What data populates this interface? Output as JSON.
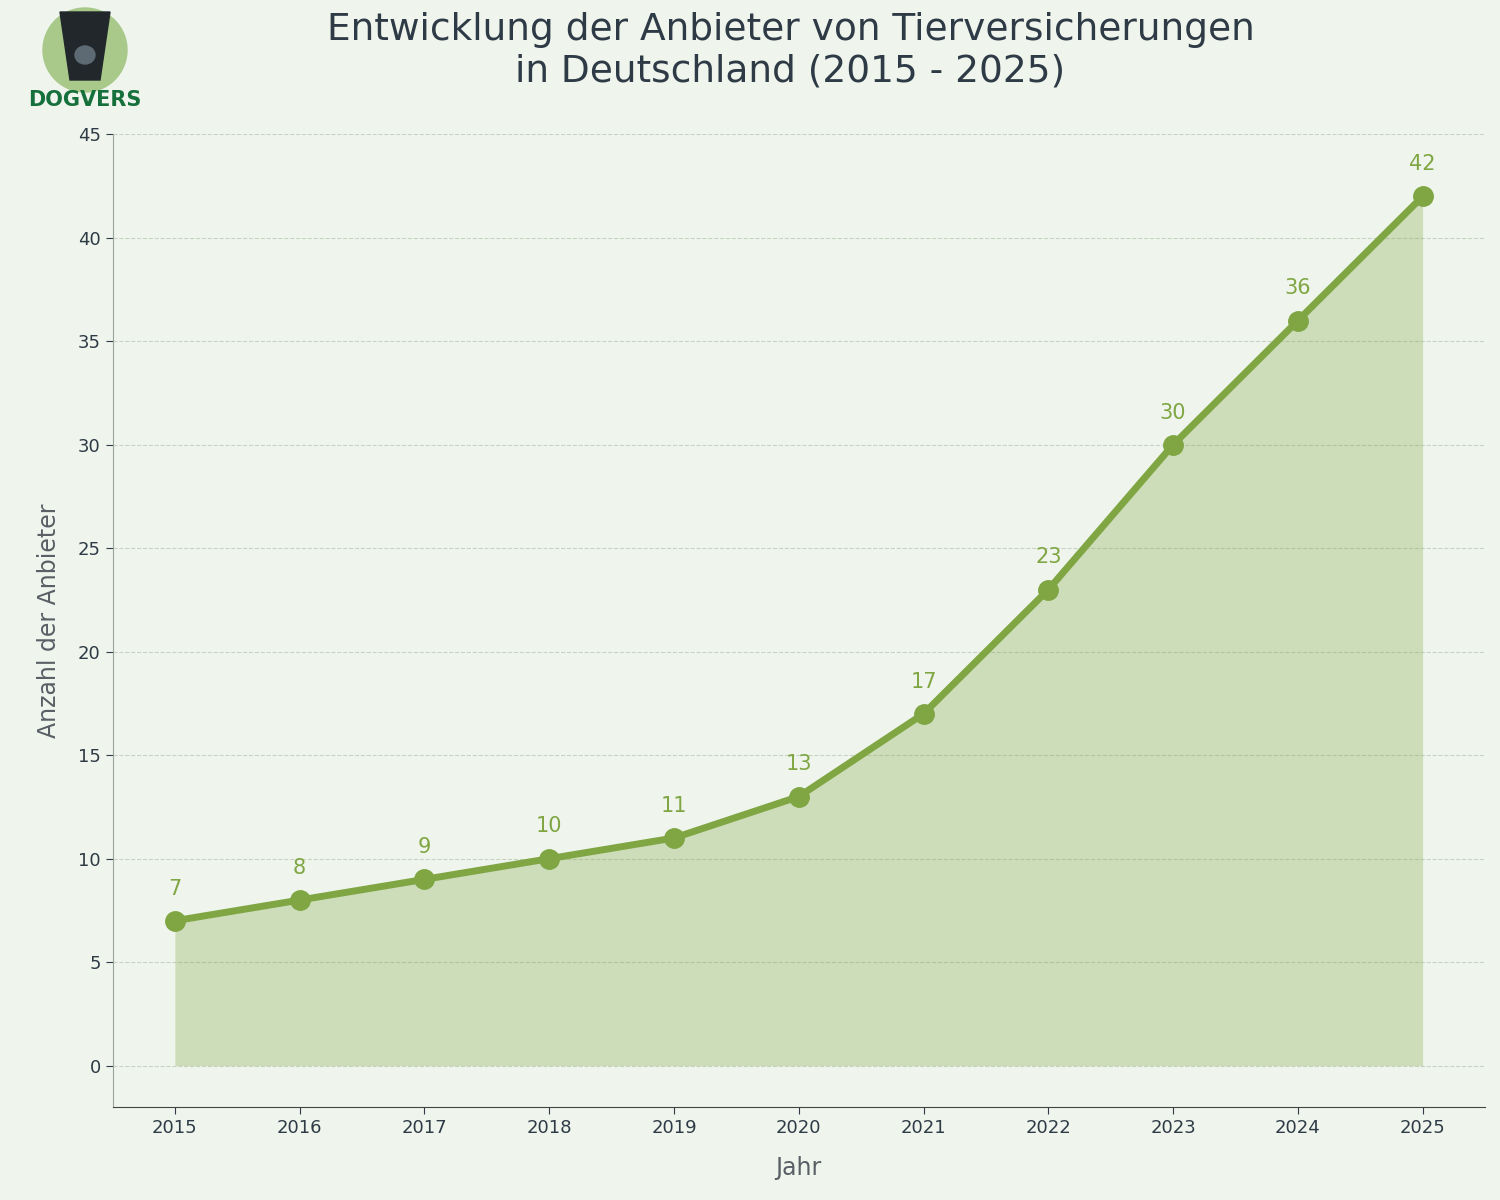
{
  "logo": {
    "text": "DOGVERS"
  },
  "chart_data": {
    "type": "line",
    "title": "Entwicklung der Anbieter von Tierversicherungen\nin Deutschland (2015 - 2025)",
    "x_label": "Jahr",
    "y_label": "Anzahl der Anbieter",
    "x": [
      2015,
      2016,
      2017,
      2018,
      2019,
      2020,
      2021,
      2022,
      2023,
      2024,
      2025
    ],
    "values": [
      7,
      8,
      9,
      10,
      11,
      13,
      17,
      23,
      30,
      36,
      42
    ],
    "color": "#7fa643",
    "marker": "circle",
    "line_style": "solid",
    "xlim": [
      2014.5,
      2025.5
    ],
    "xticks": [
      2015,
      2016,
      2017,
      2018,
      2019,
      2020,
      2021,
      2022,
      2023,
      2024,
      2025
    ],
    "ylim": [
      -2,
      45
    ],
    "yticks": [
      0,
      5,
      10,
      15,
      20,
      25,
      30,
      35,
      40,
      45
    ],
    "grid": true,
    "data_labels": true
  }
}
